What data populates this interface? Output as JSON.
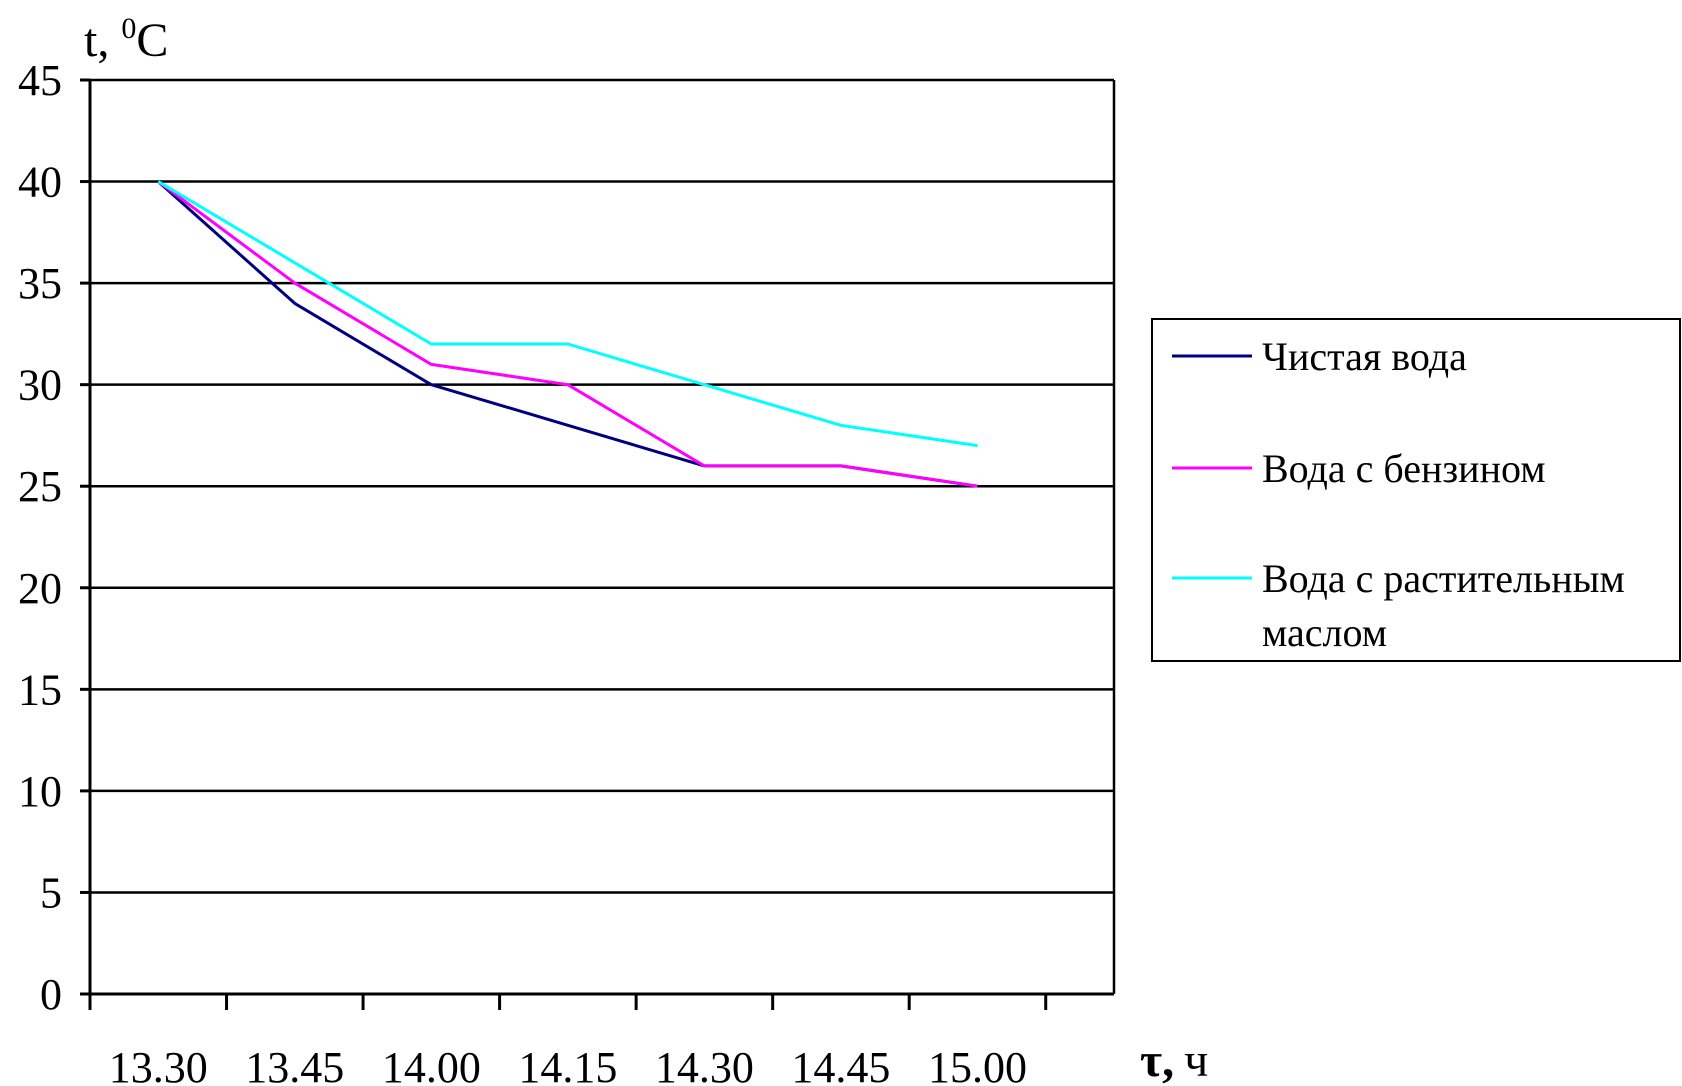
{
  "chart_data": {
    "type": "line",
    "ylabel": "t, ",
    "ylabel_sup": "0",
    "ylabel_unit": "C",
    "xlabel_symbol": "τ,",
    "xlabel_unit": "ч",
    "ylim": [
      0,
      45
    ],
    "yticks": [
      0,
      5,
      10,
      15,
      20,
      25,
      30,
      35,
      40,
      45
    ],
    "ytick_labels": [
      "0",
      "5",
      "10",
      "15",
      "20",
      "25",
      "30",
      "35",
      "40",
      "45"
    ],
    "categories": [
      "13.30",
      "13.45",
      "14.00",
      "14.15",
      "14.30",
      "14.45",
      "15.00"
    ],
    "grid": true,
    "legend_position": "right",
    "series": [
      {
        "name": "Чистая вода",
        "legend_lines": [
          "Чистая вода"
        ],
        "color": "#000080",
        "values": [
          40,
          34,
          30,
          28,
          26,
          26,
          25
        ]
      },
      {
        "name": "Вода с бензином",
        "legend_lines": [
          "Вода с бензином"
        ],
        "color": "#ff00ff",
        "values": [
          40,
          35,
          31,
          30,
          26,
          26,
          25
        ]
      },
      {
        "name": "Вода с растительным маслом",
        "legend_lines": [
          "Вода с растительным",
          "маслом"
        ],
        "color": "#00ffff",
        "values": [
          40,
          36,
          32,
          32,
          30,
          28,
          27
        ]
      }
    ]
  }
}
